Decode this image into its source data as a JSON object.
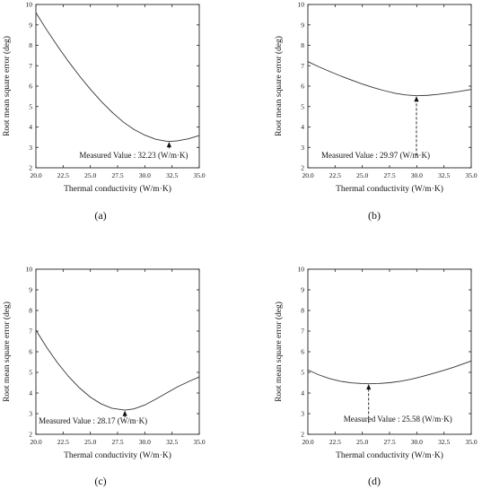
{
  "chart_data": [
    {
      "type": "line",
      "panel_label": "(a)",
      "xlabel": "Thermal conductivity (W/m·K)",
      "ylabel": "Root mean square error (deg)",
      "xlim": [
        20.0,
        35.0
      ],
      "ylim": [
        2,
        10
      ],
      "xticks": [
        "20.0",
        "22.5",
        "25.0",
        "27.5",
        "30.0",
        "32.5",
        "35.0"
      ],
      "yticks": [
        "2",
        "3",
        "4",
        "5",
        "6",
        "7",
        "8",
        "9",
        "10"
      ],
      "x": [
        20.0,
        21.0,
        22.0,
        23.0,
        24.0,
        25.0,
        26.0,
        27.0,
        28.0,
        29.0,
        30.0,
        31.0,
        32.0,
        32.23,
        33.0,
        34.0,
        35.0
      ],
      "y": [
        9.6,
        8.75,
        7.95,
        7.2,
        6.5,
        5.85,
        5.25,
        4.72,
        4.25,
        3.88,
        3.6,
        3.4,
        3.3,
        3.29,
        3.32,
        3.42,
        3.58
      ],
      "annotation": {
        "text": "Measured Value : 32.23 (W/m·K)",
        "x": 32.23,
        "arrow_from_y": 2.95,
        "arrow_to_y": 3.29,
        "dashed": false
      }
    },
    {
      "type": "line",
      "panel_label": "(b)",
      "xlabel": "Thermal conductivity (W/m·K)",
      "ylabel": "Root mean square error (deg)",
      "xlim": [
        20.0,
        35.0
      ],
      "ylim": [
        2,
        10
      ],
      "xticks": [
        "20.0",
        "22.5",
        "25.0",
        "27.5",
        "30.0",
        "32.5",
        "35.0"
      ],
      "yticks": [
        "2",
        "3",
        "4",
        "5",
        "6",
        "7",
        "8",
        "9",
        "10"
      ],
      "x": [
        20.0,
        21.0,
        22.0,
        23.0,
        24.0,
        25.0,
        26.0,
        27.0,
        28.0,
        29.0,
        29.97,
        31.0,
        32.0,
        33.0,
        34.0,
        35.0
      ],
      "y": [
        7.2,
        6.95,
        6.72,
        6.5,
        6.3,
        6.1,
        5.93,
        5.78,
        5.65,
        5.57,
        5.53,
        5.55,
        5.6,
        5.67,
        5.75,
        5.84
      ],
      "annotation": {
        "text": "Measured Value : 29.97 (W/m·K)",
        "x": 29.97,
        "arrow_from_y": 2.6,
        "arrow_to_y": 5.53,
        "dashed": true
      }
    },
    {
      "type": "line",
      "panel_label": "(c)",
      "xlabel": "Thermal conductivity (W/m·K)",
      "ylabel": "Root mean square error (deg)",
      "xlim": [
        20.0,
        35.0
      ],
      "ylim": [
        2,
        10
      ],
      "xticks": [
        "20.0",
        "22.5",
        "25.0",
        "27.5",
        "30.0",
        "32.5",
        "35.0"
      ],
      "yticks": [
        "2",
        "3",
        "4",
        "5",
        "6",
        "7",
        "8",
        "9",
        "10"
      ],
      "x": [
        20.0,
        21.0,
        22.0,
        23.0,
        24.0,
        25.0,
        26.0,
        27.0,
        28.17,
        29.0,
        30.0,
        31.0,
        32.0,
        33.0,
        34.0,
        35.0
      ],
      "y": [
        7.05,
        6.2,
        5.45,
        4.8,
        4.25,
        3.8,
        3.47,
        3.26,
        3.17,
        3.23,
        3.42,
        3.7,
        4.0,
        4.3,
        4.55,
        4.78
      ],
      "annotation": {
        "text": "Measured Value : 28.17 (W/m·K)",
        "x": 28.17,
        "arrow_from_y": 2.82,
        "arrow_to_y": 3.17,
        "dashed": false
      }
    },
    {
      "type": "line",
      "panel_label": "(d)",
      "xlabel": "Thermal conductivity (W/m·K)",
      "ylabel": "Root mean square error (deg)",
      "xlim": [
        20.0,
        35.0
      ],
      "ylim": [
        2,
        10
      ],
      "xticks": [
        "20.0",
        "22.5",
        "25.0",
        "27.5",
        "30.0",
        "32.5",
        "35.0"
      ],
      "yticks": [
        "2",
        "3",
        "4",
        "5",
        "6",
        "7",
        "8",
        "9",
        "10"
      ],
      "x": [
        20.0,
        21.0,
        22.0,
        23.0,
        24.0,
        25.0,
        25.58,
        26.5,
        27.5,
        28.5,
        29.5,
        30.5,
        31.5,
        32.5,
        33.5,
        35.0
      ],
      "y": [
        5.12,
        4.88,
        4.7,
        4.57,
        4.49,
        4.46,
        4.45,
        4.46,
        4.5,
        4.57,
        4.67,
        4.8,
        4.95,
        5.1,
        5.27,
        5.55
      ],
      "annotation": {
        "text": "Measured Value : 25.58 (W/m·K)",
        "x": 25.58,
        "arrow_from_y": 2.55,
        "arrow_to_y": 4.45,
        "dashed": true
      }
    }
  ]
}
